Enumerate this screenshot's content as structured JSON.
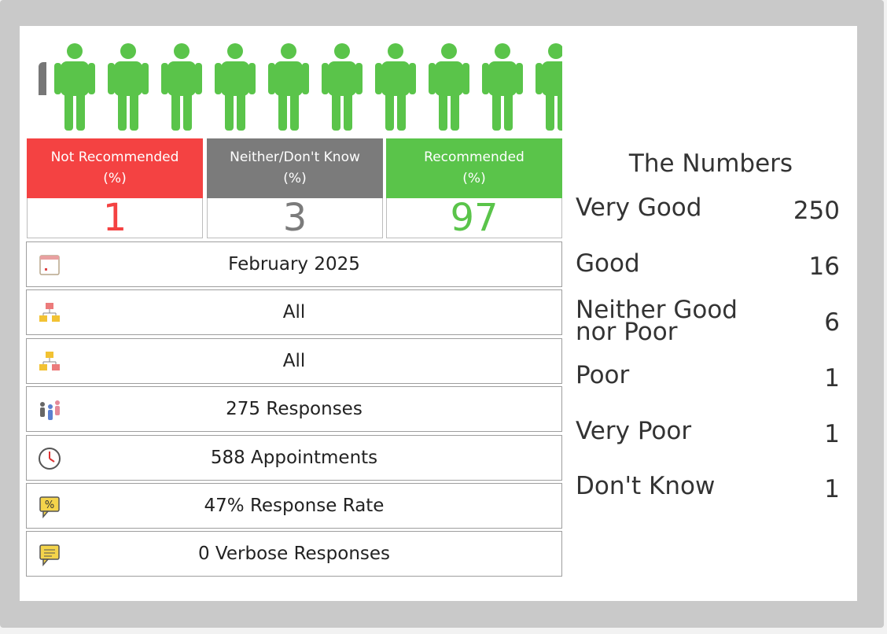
{
  "stats": {
    "not_recommended": {
      "label1": "Not Recommended",
      "label2": "(%)",
      "value": "1",
      "color": "#f44242"
    },
    "neither": {
      "label1": "Neither/Don't Know",
      "label2": "(%)",
      "value": "3",
      "color": "#7b7b7b"
    },
    "recommended": {
      "label1": "Recommended",
      "label2": "(%)",
      "value": "97",
      "color": "#5ac44a"
    }
  },
  "info": {
    "period": "February 2025",
    "filter1": "All",
    "filter2": "All",
    "responses": "275 Responses",
    "appointments": "588 Appointments",
    "response_rate": "47% Response Rate",
    "verbose": "0 Verbose Responses"
  },
  "numbers": {
    "title": "The Numbers",
    "rows": [
      {
        "label": "Very Good",
        "value": "250"
      },
      {
        "label": "Good",
        "value": "16"
      },
      {
        "label": "Neither Good nor Poor",
        "value": "6"
      },
      {
        "label": "Poor",
        "value": "1"
      },
      {
        "label": "Very Poor",
        "value": "1"
      },
      {
        "label": "Don't Know",
        "value": "1"
      }
    ]
  },
  "icons": {
    "people": "person-icon",
    "period": "calendar-icon",
    "filter1": "org-chart-icon",
    "filter2": "org-chart-alt-icon",
    "responses": "people-group-icon",
    "appointments": "clock-icon",
    "response_rate": "percent-speech-icon",
    "verbose": "comment-icon"
  }
}
